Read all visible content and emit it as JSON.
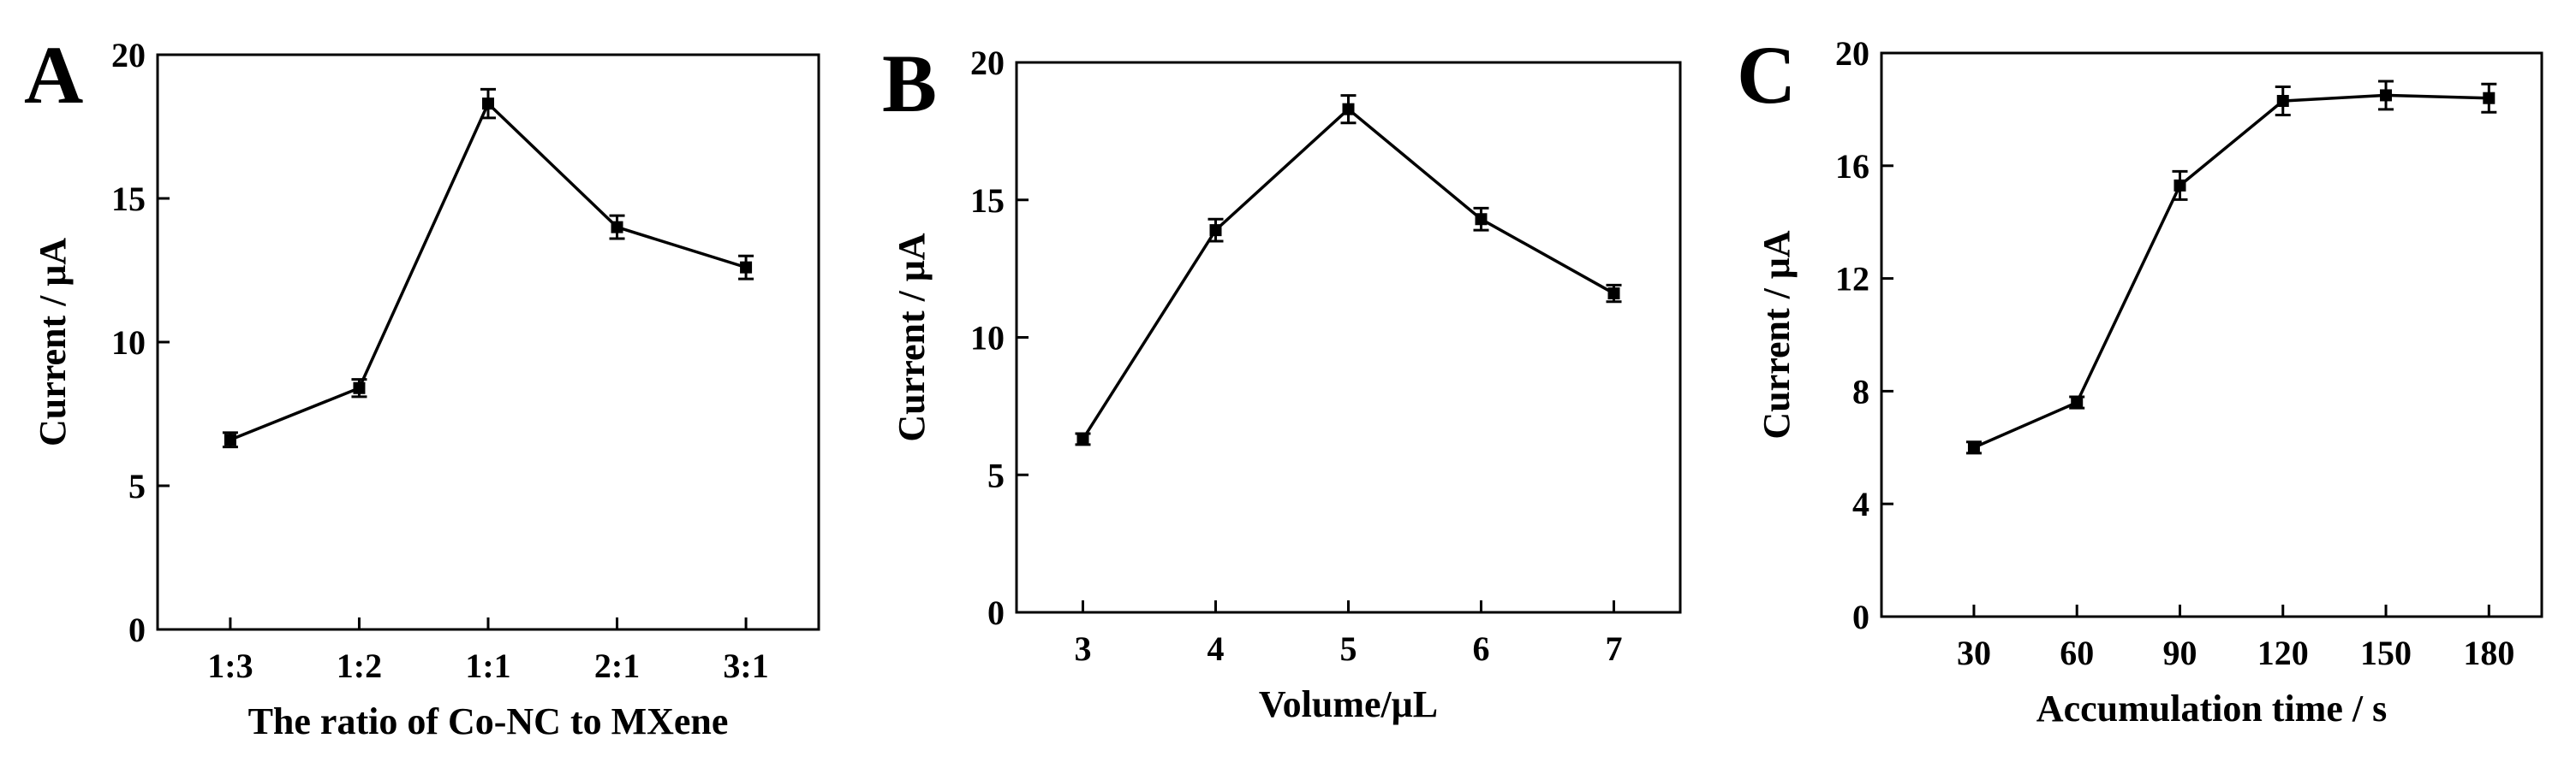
{
  "chart_data": [
    {
      "panel": "A",
      "type": "line",
      "categories": [
        "1:3",
        "1:2",
        "1:1",
        "2:1",
        "3:1"
      ],
      "values": [
        6.6,
        8.4,
        18.3,
        14.0,
        12.6
      ],
      "errors": [
        0.25,
        0.3,
        0.5,
        0.4,
        0.4
      ],
      "xlabel": "The ratio of Co-NC to MXene",
      "ylabel": "Current / μA",
      "ylim": [
        0,
        20
      ],
      "yticks": [
        0,
        5,
        10,
        15,
        20
      ],
      "grid": false,
      "legend": "none"
    },
    {
      "panel": "B",
      "type": "line",
      "categories": [
        "3",
        "4",
        "5",
        "6",
        "7"
      ],
      "values": [
        6.3,
        13.9,
        18.3,
        14.3,
        11.6
      ],
      "errors": [
        0.2,
        0.4,
        0.5,
        0.4,
        0.3
      ],
      "xlabel": "Volume/μL",
      "ylabel": "Current / μA",
      "ylim": [
        0,
        20
      ],
      "yticks": [
        0,
        5,
        10,
        15,
        20
      ],
      "grid": false,
      "legend": "none"
    },
    {
      "panel": "C",
      "type": "line",
      "categories": [
        "30",
        "60",
        "90",
        "120",
        "150",
        "180"
      ],
      "values": [
        6.0,
        7.6,
        15.3,
        18.3,
        18.5,
        18.4
      ],
      "errors": [
        0.2,
        0.2,
        0.5,
        0.5,
        0.5,
        0.5
      ],
      "xlabel": "Accumulation time / s",
      "ylabel": "Current / μA",
      "ylim": [
        0,
        20
      ],
      "yticks": [
        0,
        4,
        8,
        12,
        16,
        20
      ],
      "grid": false,
      "legend": "none"
    }
  ],
  "style": {
    "line_color": "#000000",
    "marker_color": "#000000",
    "background": "#ffffff"
  }
}
